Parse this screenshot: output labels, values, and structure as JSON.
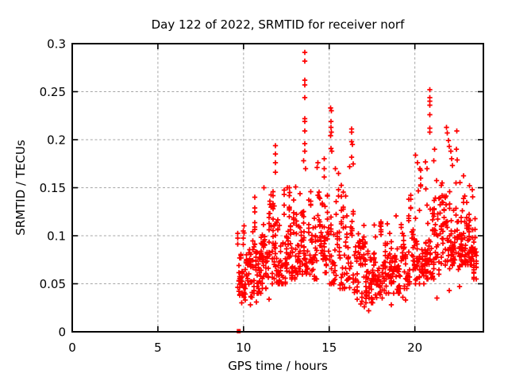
{
  "window": {
    "background": "#ffffff"
  },
  "chart_data": {
    "type": "scatter",
    "title": "Day 122 of 2022, SRMTID for receiver norf",
    "xlabel": "GPS time / hours",
    "ylabel": "SRMTID / TECUs",
    "xlim": [
      0,
      24
    ],
    "ylim": [
      0,
      0.3
    ],
    "xticks": [
      0,
      5,
      10,
      15,
      20
    ],
    "yticks": [
      0,
      0.05,
      0.1,
      0.15,
      0.2,
      0.25,
      0.3
    ],
    "grid": true,
    "grid_style": "dashed",
    "grid_color": "#a6a6a6",
    "marker": "plus",
    "marker_color": "#ff0000",
    "border_color": "#000000",
    "seed": 7,
    "zero_point": [
      9.72,
      0.0
    ],
    "note_data_span_hours": [
      9.62,
      23.62
    ],
    "density_bands": [
      [
        9.62,
        10.0,
        0.038,
        0.105,
        40
      ],
      [
        10.0,
        10.5,
        0.036,
        0.115,
        55
      ],
      [
        10.5,
        11.0,
        0.04,
        0.135,
        52
      ],
      [
        11.0,
        11.5,
        0.045,
        0.145,
        46
      ],
      [
        11.5,
        12.0,
        0.05,
        0.15,
        46
      ],
      [
        12.0,
        12.5,
        0.05,
        0.155,
        46
      ],
      [
        12.5,
        13.0,
        0.055,
        0.15,
        46
      ],
      [
        13.0,
        13.5,
        0.06,
        0.155,
        46
      ],
      [
        13.5,
        14.1,
        0.06,
        0.15,
        52
      ],
      [
        14.1,
        14.6,
        0.055,
        0.155,
        44
      ],
      [
        14.6,
        15.1,
        0.05,
        0.16,
        42
      ],
      [
        15.1,
        15.6,
        0.05,
        0.165,
        40
      ],
      [
        15.6,
        16.1,
        0.045,
        0.155,
        40
      ],
      [
        16.1,
        16.6,
        0.04,
        0.15,
        40
      ],
      [
        16.6,
        17.1,
        0.032,
        0.125,
        42
      ],
      [
        17.1,
        17.6,
        0.03,
        0.11,
        42
      ],
      [
        17.6,
        18.1,
        0.035,
        0.115,
        42
      ],
      [
        18.1,
        18.6,
        0.04,
        0.12,
        44
      ],
      [
        18.6,
        19.1,
        0.04,
        0.125,
        44
      ],
      [
        19.1,
        19.6,
        0.045,
        0.13,
        44
      ],
      [
        19.6,
        20.1,
        0.05,
        0.142,
        42
      ],
      [
        20.1,
        20.6,
        0.05,
        0.16,
        42
      ],
      [
        20.6,
        21.1,
        0.055,
        0.168,
        42
      ],
      [
        21.1,
        21.6,
        0.06,
        0.168,
        42
      ],
      [
        21.6,
        22.1,
        0.06,
        0.165,
        42
      ],
      [
        22.1,
        22.6,
        0.065,
        0.17,
        44
      ],
      [
        22.6,
        23.0,
        0.07,
        0.168,
        40
      ],
      [
        23.0,
        23.35,
        0.07,
        0.155,
        38
      ],
      [
        23.35,
        23.62,
        0.055,
        0.148,
        34
      ]
    ],
    "outlier_points": [
      [
        9.9,
        0.03
      ],
      [
        10.1,
        0.033
      ],
      [
        10.4,
        0.028
      ],
      [
        10.65,
        0.14
      ],
      [
        10.75,
        0.031
      ],
      [
        11.2,
        0.15
      ],
      [
        11.5,
        0.034
      ],
      [
        11.87,
        0.194
      ],
      [
        11.87,
        0.185
      ],
      [
        11.87,
        0.176
      ],
      [
        11.87,
        0.166
      ],
      [
        12.55,
        0.15
      ],
      [
        12.7,
        0.145
      ],
      [
        13.05,
        0.151
      ],
      [
        13.57,
        0.291
      ],
      [
        13.57,
        0.282
      ],
      [
        13.57,
        0.262
      ],
      [
        13.57,
        0.257
      ],
      [
        13.57,
        0.244
      ],
      [
        13.57,
        0.222
      ],
      [
        13.57,
        0.219
      ],
      [
        13.57,
        0.209
      ],
      [
        13.57,
        0.196
      ],
      [
        13.57,
        0.188
      ],
      [
        13.5,
        0.178
      ],
      [
        13.63,
        0.17
      ],
      [
        14.3,
        0.171
      ],
      [
        14.35,
        0.176
      ],
      [
        14.72,
        0.18
      ],
      [
        14.72,
        0.17
      ],
      [
        14.72,
        0.161
      ],
      [
        15.08,
        0.233
      ],
      [
        15.12,
        0.23
      ],
      [
        15.1,
        0.219
      ],
      [
        15.1,
        0.213
      ],
      [
        15.12,
        0.208
      ],
      [
        15.08,
        0.204
      ],
      [
        15.1,
        0.191
      ],
      [
        15.14,
        0.188
      ],
      [
        15.35,
        0.17
      ],
      [
        16.3,
        0.211
      ],
      [
        16.3,
        0.208
      ],
      [
        16.32,
        0.198
      ],
      [
        16.35,
        0.195
      ],
      [
        16.3,
        0.182
      ],
      [
        16.4,
        0.175
      ],
      [
        16.2,
        0.172
      ],
      [
        16.85,
        0.029
      ],
      [
        17.05,
        0.026
      ],
      [
        17.15,
        0.03
      ],
      [
        17.3,
        0.022
      ],
      [
        18.62,
        0.028
      ],
      [
        19.3,
        0.036
      ],
      [
        19.45,
        0.033
      ],
      [
        20.05,
        0.184
      ],
      [
        20.15,
        0.176
      ],
      [
        20.3,
        0.17
      ],
      [
        20.35,
        0.168
      ],
      [
        20.62,
        0.177
      ],
      [
        20.7,
        0.17
      ],
      [
        20.88,
        0.252
      ],
      [
        20.88,
        0.244
      ],
      [
        20.88,
        0.24
      ],
      [
        20.88,
        0.236
      ],
      [
        20.88,
        0.226
      ],
      [
        20.88,
        0.212
      ],
      [
        20.88,
        0.208
      ],
      [
        21.15,
        0.19
      ],
      [
        21.1,
        0.178
      ],
      [
        21.3,
        0.035
      ],
      [
        21.85,
        0.213
      ],
      [
        21.9,
        0.207
      ],
      [
        21.95,
        0.199
      ],
      [
        22.0,
        0.193
      ],
      [
        22.1,
        0.188
      ],
      [
        22.15,
        0.18
      ],
      [
        22.2,
        0.173
      ],
      [
        22.45,
        0.209
      ],
      [
        22.42,
        0.19
      ],
      [
        22.48,
        0.179
      ],
      [
        22.0,
        0.043
      ],
      [
        22.6,
        0.047
      ],
      [
        23.2,
        0.152
      ],
      [
        23.35,
        0.148
      ]
    ]
  }
}
